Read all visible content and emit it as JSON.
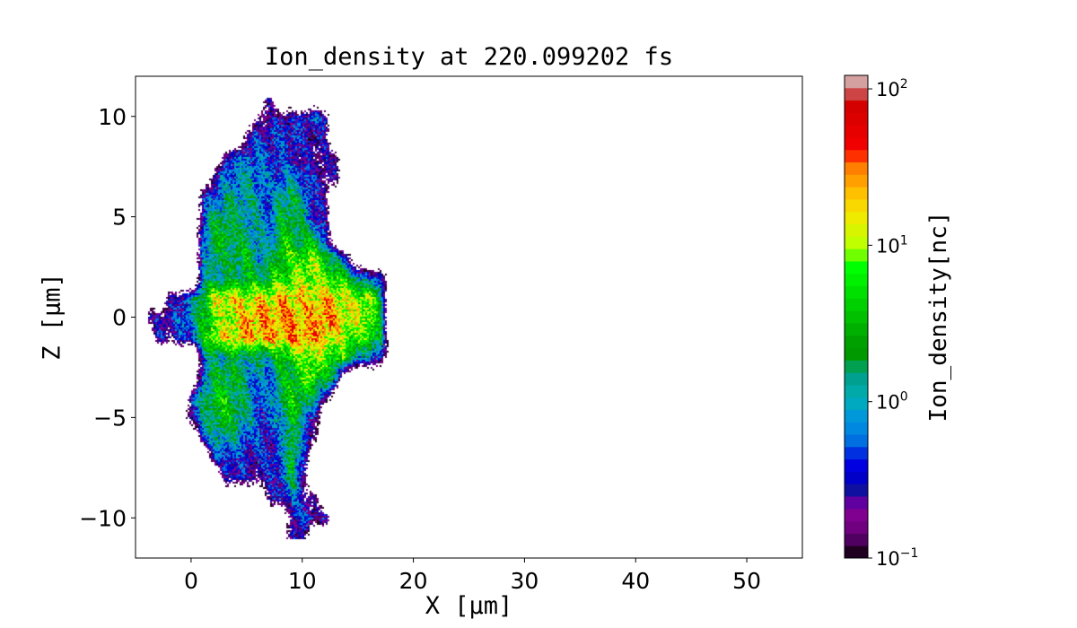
{
  "chart_data": {
    "type": "heatmap",
    "title": "Ion_density at 220.099202 fs",
    "xlabel": "X [μm]",
    "ylabel": "Z [μm]",
    "colorbar_label": "Ion_density[nc]",
    "xlim": [
      -5,
      55
    ],
    "ylim": [
      -12,
      12
    ],
    "x_ticks": [
      0,
      10,
      20,
      30,
      40,
      50
    ],
    "y_ticks": [
      -10,
      -5,
      0,
      5,
      10
    ],
    "y_tick_labels": [
      "−10",
      "−5",
      "0",
      "5",
      "10"
    ],
    "color_scale": "log",
    "color_range": [
      0.1,
      122
    ],
    "colorbar_ticks": [
      0.1,
      1,
      10,
      100
    ],
    "colorbar_tick_exponents": [
      "−1",
      "0",
      "1",
      "2"
    ],
    "colormap_low_to_high": [
      "#200020",
      "#500060",
      "#700080",
      "#800090",
      "#6000a0",
      "#1010a0",
      "#0000c8",
      "#0000e0",
      "#0030e0",
      "#0070e0",
      "#0088e0",
      "#0098d8",
      "#00a8c0",
      "#00aaa8",
      "#00a090",
      "#00a050",
      "#009a00",
      "#00a000",
      "#00b000",
      "#00c000",
      "#00d000",
      "#00e000",
      "#00f000",
      "#00ff00",
      "#70ff00",
      "#c0ff00",
      "#d8f500",
      "#eeea00",
      "#f8d800",
      "#ffc000",
      "#ffa000",
      "#ff7f00",
      "#ff3000",
      "#f00000",
      "#e60000",
      "#dd0000",
      "#d40000",
      "#cc4444",
      "#d4a0a0"
    ],
    "grid": false,
    "density_grid": {
      "x": [
        -4,
        -3,
        -2,
        -1,
        0,
        1,
        2,
        3,
        4,
        5,
        6,
        7,
        8,
        9,
        10,
        11,
        12,
        13,
        14,
        15,
        16,
        17,
        18
      ],
      "z": [
        11,
        10,
        9,
        8,
        7,
        6,
        5,
        4,
        3,
        2,
        1,
        0,
        -1,
        -2,
        -3,
        -4,
        -5,
        -6,
        -7,
        -8,
        -9,
        -10,
        -11
      ],
      "values": [
        [
          0,
          0,
          0,
          0,
          0,
          0,
          0,
          0,
          0,
          0,
          0,
          0.2,
          0,
          0,
          0,
          0,
          0,
          0,
          0,
          0,
          0,
          0,
          0
        ],
        [
          0,
          0,
          0,
          0,
          0,
          0,
          0,
          0,
          0,
          0,
          0.2,
          0.2,
          0.3,
          0.2,
          0.4,
          0.5,
          0.3,
          0,
          0,
          0,
          0,
          0,
          0
        ],
        [
          0,
          0,
          0,
          0,
          0,
          0,
          0,
          0,
          0,
          0.3,
          0.4,
          0.3,
          0.5,
          0.4,
          0.3,
          0.3,
          0.2,
          0,
          0,
          0,
          0,
          0,
          0
        ],
        [
          0,
          0,
          0,
          0,
          0,
          0,
          0,
          0.3,
          0.5,
          0.6,
          0.5,
          0.4,
          0.4,
          0.3,
          0.2,
          0.2,
          0.2,
          0.2,
          0,
          0,
          0,
          0,
          0
        ],
        [
          0,
          0,
          0,
          0,
          0,
          0,
          0.3,
          0.6,
          0.8,
          1,
          0.8,
          0.5,
          0.6,
          0.8,
          0.5,
          0.3,
          0.2,
          0.2,
          0,
          0,
          0,
          0,
          0
        ],
        [
          0,
          0,
          0,
          0,
          0,
          0.3,
          0.6,
          0.9,
          1.2,
          1.2,
          0.8,
          0.5,
          1.5,
          2,
          1,
          0.3,
          0.2,
          0,
          0,
          0,
          0,
          0,
          0
        ],
        [
          0,
          0,
          0,
          0,
          0,
          0.5,
          1.5,
          2,
          1.5,
          1.2,
          0.8,
          0.6,
          2,
          2.5,
          1.2,
          0.3,
          0.2,
          0,
          0,
          0,
          0,
          0,
          0
        ],
        [
          0,
          0,
          0,
          0,
          0,
          0.8,
          2.5,
          3,
          2,
          1.5,
          1,
          0.8,
          3,
          3,
          2,
          2,
          0.4,
          0,
          0,
          0,
          0,
          0,
          0
        ],
        [
          0,
          0,
          0,
          0,
          0,
          0.6,
          2,
          1.5,
          2,
          3,
          1,
          1.5,
          4,
          5,
          6,
          8,
          4,
          1,
          0.3,
          0,
          0,
          0,
          0
        ],
        [
          0,
          0,
          0,
          0,
          0,
          0.8,
          1.5,
          1.2,
          2,
          2.5,
          2,
          3,
          5,
          7,
          8,
          10,
          6,
          5,
          3,
          1,
          0.5,
          0.5,
          0
        ],
        [
          0,
          0,
          0.2,
          0.3,
          0.6,
          3,
          12,
          20,
          15,
          12,
          14,
          15,
          18,
          20,
          16,
          14,
          18,
          15,
          12,
          10,
          8,
          2,
          0
        ],
        [
          0.2,
          0.3,
          0.3,
          0.5,
          1,
          3,
          6,
          10,
          15,
          20,
          25,
          20,
          30,
          25,
          20,
          25,
          30,
          20,
          15,
          12,
          8,
          2,
          0
        ],
        [
          0,
          0.3,
          0.2,
          0.3,
          0.6,
          3,
          10,
          15,
          20,
          18,
          22,
          25,
          20,
          30,
          25,
          20,
          18,
          12,
          8,
          6,
          6,
          2,
          0
        ],
        [
          0,
          0,
          0,
          0,
          0,
          0.5,
          1.5,
          1.2,
          2,
          1.5,
          1,
          1.5,
          3,
          5,
          7,
          10,
          6,
          5,
          4,
          1,
          0.5,
          0.5,
          0
        ],
        [
          0,
          0,
          0,
          0,
          0,
          0.8,
          2,
          3,
          2,
          1,
          0.6,
          0.5,
          2,
          3,
          5,
          6,
          3,
          1,
          0,
          0,
          0,
          0,
          0
        ],
        [
          0,
          0,
          0,
          0,
          0.4,
          1.5,
          3,
          3.5,
          2,
          1.2,
          0.5,
          0.6,
          2,
          4,
          3,
          1,
          0.3,
          0,
          0,
          0,
          0,
          0,
          0
        ],
        [
          0,
          0,
          0,
          0,
          0.3,
          1,
          2.5,
          3,
          2,
          1,
          0.5,
          0.4,
          1,
          3,
          1,
          0.3,
          0,
          0,
          0,
          0,
          0,
          0,
          0
        ],
        [
          0,
          0,
          0,
          0,
          0,
          0.4,
          1,
          1.5,
          1,
          0.5,
          0.4,
          0.3,
          0.5,
          3,
          0.5,
          0.2,
          0,
          0,
          0,
          0,
          0,
          0,
          0
        ],
        [
          0,
          0,
          0,
          0,
          0,
          0,
          0.3,
          0.5,
          0.3,
          0.3,
          0.3,
          0.4,
          0.5,
          3,
          0.5,
          0,
          0,
          0,
          0,
          0,
          0,
          0,
          0
        ],
        [
          0,
          0,
          0,
          0,
          0,
          0,
          0,
          0.2,
          0.3,
          0.2,
          0.2,
          0.3,
          0.4,
          2,
          0.3,
          0,
          0,
          0,
          0,
          0,
          0,
          0,
          0
        ],
        [
          0,
          0,
          0,
          0,
          0,
          0,
          0,
          0,
          0,
          0,
          0,
          0.2,
          0.3,
          0.6,
          0.2,
          0.2,
          0,
          0,
          0,
          0,
          0,
          0,
          0
        ],
        [
          0,
          0,
          0,
          0,
          0,
          0,
          0,
          0,
          0,
          0,
          0,
          0,
          0,
          0.3,
          0.4,
          0.4,
          0.3,
          0,
          0,
          0,
          0,
          0,
          0
        ],
        [
          0,
          0,
          0,
          0,
          0,
          0,
          0,
          0,
          0,
          0,
          0,
          0,
          0,
          0.4,
          0.2,
          0,
          0,
          0,
          0,
          0,
          0,
          0,
          0
        ]
      ]
    }
  }
}
